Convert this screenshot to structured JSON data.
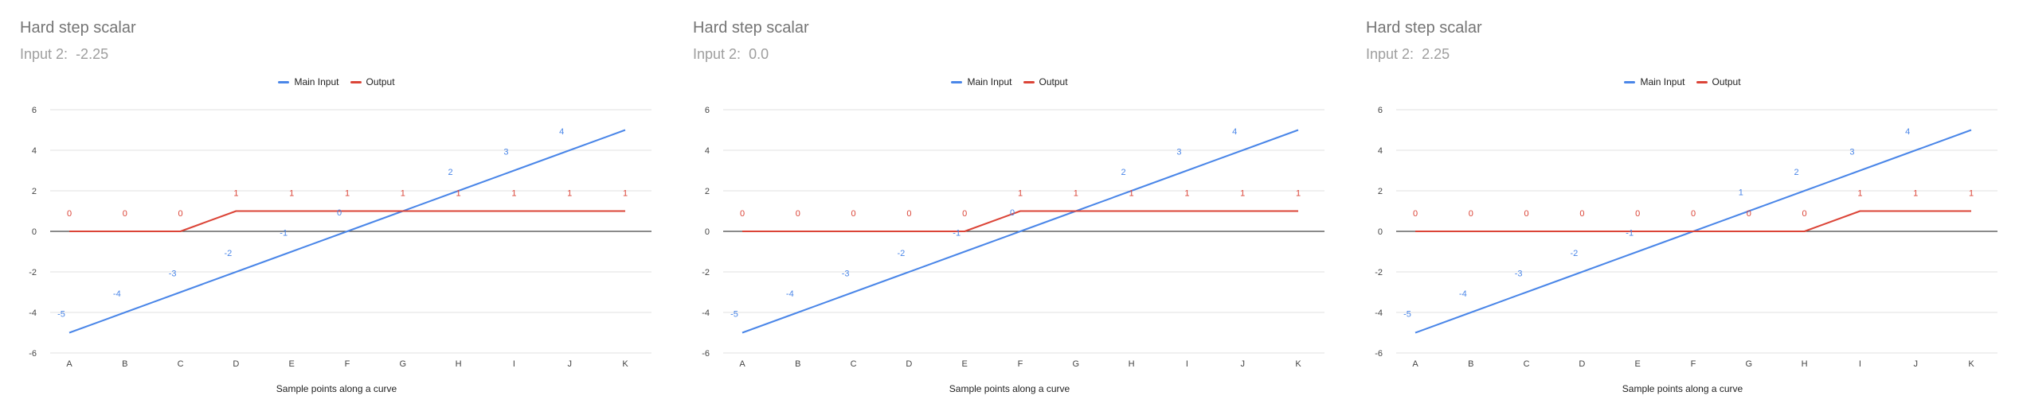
{
  "charts": [
    {
      "title": "Hard step scalar",
      "subtitle_label": "Input 2:",
      "subtitle_value": "-2.25",
      "xlabel": "Sample points along a curve",
      "legend": [
        "Main Input",
        "Output"
      ]
    },
    {
      "title": "Hard step scalar",
      "subtitle_label": "Input 2:",
      "subtitle_value": "0.0",
      "xlabel": "Sample points along a curve",
      "legend": [
        "Main Input",
        "Output"
      ]
    },
    {
      "title": "Hard step scalar",
      "subtitle_label": "Input 2:",
      "subtitle_value": "2.25",
      "xlabel": "Sample points along a curve",
      "legend": [
        "Main Input",
        "Output"
      ]
    }
  ],
  "colors": {
    "main_input": "#4a86e8",
    "output": "#db4437",
    "grid": "#e0e0e0",
    "axis": "#444444"
  },
  "chart_data": [
    {
      "type": "line",
      "title": "Hard step scalar",
      "subtitle": "Input 2:  -2.25",
      "xlabel": "Sample points along a curve",
      "ylabel": "",
      "categories": [
        "A",
        "B",
        "C",
        "D",
        "E",
        "F",
        "G",
        "H",
        "I",
        "J",
        "K"
      ],
      "ylim": [
        -6,
        6
      ],
      "yticks": [
        -6,
        -4,
        -2,
        0,
        2,
        4,
        6
      ],
      "grid": true,
      "legend_position": "top",
      "series": [
        {
          "name": "Main Input",
          "values": [
            -5,
            -4,
            -3,
            -2,
            -1,
            0,
            1,
            2,
            3,
            4,
            5
          ],
          "labels": [
            "-5",
            "-4",
            "-3",
            "-2",
            "-1",
            "0",
            "",
            "2",
            "3",
            "4",
            ""
          ]
        },
        {
          "name": "Output",
          "values": [
            0,
            0,
            0,
            1,
            1,
            1,
            1,
            1,
            1,
            1,
            1
          ],
          "labels": [
            "0",
            "0",
            "0",
            "1",
            "1",
            "1",
            "1",
            "1",
            "1",
            "1",
            "1"
          ]
        }
      ]
    },
    {
      "type": "line",
      "title": "Hard step scalar",
      "subtitle": "Input 2:  0.0",
      "xlabel": "Sample points along a curve",
      "ylabel": "",
      "categories": [
        "A",
        "B",
        "C",
        "D",
        "E",
        "F",
        "G",
        "H",
        "I",
        "J",
        "K"
      ],
      "ylim": [
        -6,
        6
      ],
      "yticks": [
        -6,
        -4,
        -2,
        0,
        2,
        4,
        6
      ],
      "grid": true,
      "legend_position": "top",
      "series": [
        {
          "name": "Main Input",
          "values": [
            -5,
            -4,
            -3,
            -2,
            -1,
            0,
            1,
            2,
            3,
            4,
            5
          ],
          "labels": [
            "-5",
            "-4",
            "-3",
            "-2",
            "-1",
            "0",
            "",
            "2",
            "3",
            "4",
            ""
          ]
        },
        {
          "name": "Output",
          "values": [
            0,
            0,
            0,
            0,
            0,
            1,
            1,
            1,
            1,
            1,
            1
          ],
          "labels": [
            "0",
            "0",
            "0",
            "0",
            "0",
            "1",
            "1",
            "1",
            "1",
            "1",
            "1"
          ]
        }
      ]
    },
    {
      "type": "line",
      "title": "Hard step scalar",
      "subtitle": "Input 2:  2.25",
      "xlabel": "Sample points along a curve",
      "ylabel": "",
      "categories": [
        "A",
        "B",
        "C",
        "D",
        "E",
        "F",
        "G",
        "H",
        "I",
        "J",
        "K"
      ],
      "ylim": [
        -6,
        6
      ],
      "yticks": [
        -6,
        -4,
        -2,
        0,
        2,
        4,
        6
      ],
      "grid": true,
      "legend_position": "top",
      "series": [
        {
          "name": "Main Input",
          "values": [
            -5,
            -4,
            -3,
            -2,
            -1,
            0,
            1,
            2,
            3,
            4,
            5
          ],
          "labels": [
            "-5",
            "-4",
            "-3",
            "-2",
            "-1",
            "",
            "1",
            "2",
            "3",
            "4",
            ""
          ]
        },
        {
          "name": "Output",
          "values": [
            0,
            0,
            0,
            0,
            0,
            0,
            0,
            0,
            1,
            1,
            1
          ],
          "labels": [
            "0",
            "0",
            "0",
            "0",
            "0",
            "0",
            "0",
            "0",
            "1",
            "1",
            "1"
          ]
        }
      ]
    }
  ]
}
